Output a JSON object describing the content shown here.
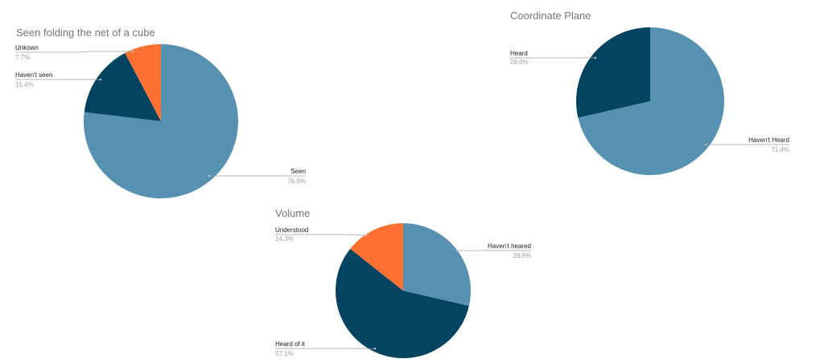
{
  "chart_data": [
    {
      "type": "pie",
      "title": "Seen folding the net of a cube",
      "colors": [
        "#5691b1",
        "#044460",
        "#fd7032"
      ],
      "slices": [
        {
          "label": "Seen",
          "value": 76.9,
          "display": "76.9%",
          "color": "#5691b1"
        },
        {
          "label": "Haven't seen",
          "value": 15.4,
          "display": "15.4%",
          "color": "#044460"
        },
        {
          "label": "Unkown",
          "value": 7.7,
          "display": "7.7%",
          "color": "#fd7032"
        }
      ]
    },
    {
      "type": "pie",
      "title": "Coordinate Plane",
      "colors": [
        "#5691b1",
        "#044460"
      ],
      "slices": [
        {
          "label": "Haven't Heard",
          "value": 71.4,
          "display": "71.4%",
          "color": "#5691b1"
        },
        {
          "label": "Heard",
          "value": 28.6,
          "display": "28.6%",
          "color": "#044460"
        }
      ]
    },
    {
      "type": "pie",
      "title": "Volume",
      "colors": [
        "#5691b1",
        "#044460",
        "#fd7032"
      ],
      "slices": [
        {
          "label": "Haven't heared",
          "value": 28.6,
          "display": "28.6%",
          "color": "#5691b1"
        },
        {
          "label": "Heard of it",
          "value": 57.1,
          "display": "57.1%",
          "color": "#044460"
        },
        {
          "label": "Understood",
          "value": 14.3,
          "display": "14.3%",
          "color": "#fd7032"
        }
      ]
    }
  ]
}
